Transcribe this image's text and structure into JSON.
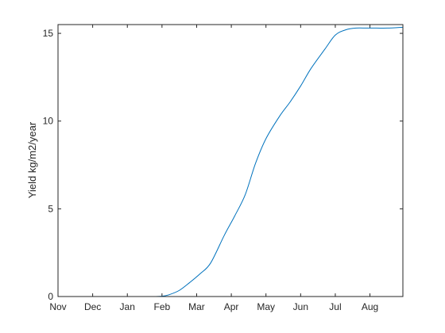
{
  "chart_data": {
    "type": "line",
    "title": "",
    "xlabel": "",
    "ylabel": "Yield kg/m2/year",
    "x_tick_labels": [
      "Nov",
      "Dec",
      "Jan",
      "Feb",
      "Mar",
      "Apr",
      "May",
      "Jun",
      "Jul",
      "Aug"
    ],
    "xlim": [
      0,
      9.95
    ],
    "ylim": [
      0,
      15.5
    ],
    "y_ticks": [
      0,
      5,
      10,
      15
    ],
    "y_tick_labels": [
      "0",
      "5",
      "10",
      "15"
    ],
    "grid": false,
    "box": true,
    "line_color": "#0072BD",
    "series": [
      {
        "x": [
          0,
          1,
          2,
          2.7,
          3.0,
          3.2,
          3.5,
          3.8,
          4.1,
          4.4,
          4.8,
          5.1,
          5.4,
          5.7,
          6.0,
          6.4,
          6.7,
          7.0,
          7.3,
          7.7,
          8.0,
          8.3,
          8.6,
          8.9,
          9.2,
          9.5,
          9.95
        ],
        "y": [
          0,
          0,
          0,
          0,
          0.02,
          0.1,
          0.35,
          0.8,
          1.3,
          1.9,
          3.5,
          4.6,
          5.8,
          7.6,
          9.0,
          10.3,
          11.1,
          12.0,
          13.0,
          14.1,
          14.9,
          15.2,
          15.3,
          15.3,
          15.3,
          15.3,
          15.35
        ]
      }
    ]
  }
}
